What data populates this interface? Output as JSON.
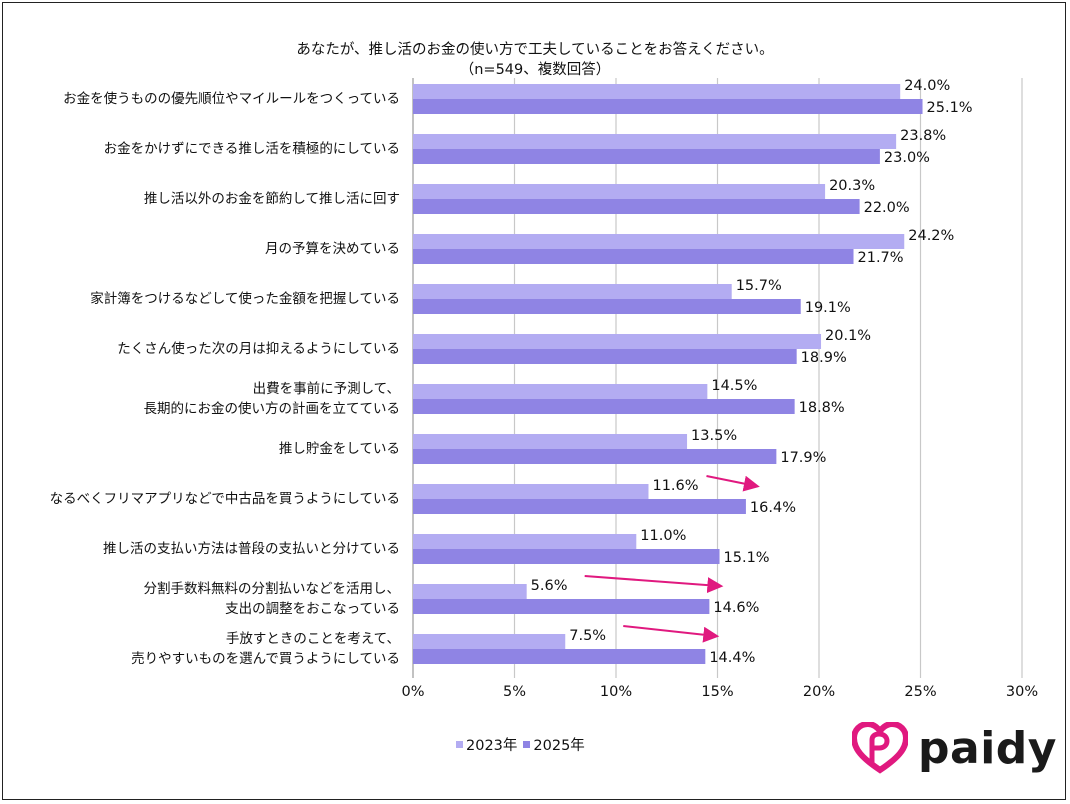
{
  "chart_data": {
    "type": "bar",
    "orientation": "horizontal",
    "title": "あなたが、推し活のお金の使い方で工夫していることをお答えください。",
    "subtitle": "（n=549、複数回答）",
    "categories": [
      [
        "お金を使うものの優先順位やマイルールをつくっている"
      ],
      [
        "お金をかけずにできる推し活を積極的にしている"
      ],
      [
        "推し活以外のお金を節約して推し活に回す"
      ],
      [
        "月の予算を決めている"
      ],
      [
        "家計簿をつけるなどして使った金額を把握している"
      ],
      [
        "たくさん使った次の月は抑えるようにしている"
      ],
      [
        "出費を事前に予測して、",
        "長期的にお金の使い方の計画を立てている"
      ],
      [
        "推し貯金をしている"
      ],
      [
        "なるべくフリマアプリなどで中古品を買うようにしている"
      ],
      [
        "推し活の支払い方法は普段の支払いと分けている"
      ],
      [
        "分割手数料無料の分割払いなどを活用し、",
        "支出の調整をおこなっている"
      ],
      [
        "手放すときのことを考えて、",
        "売りやすいものを選んで買うようにしている"
      ]
    ],
    "series": [
      {
        "name": "2023年",
        "color": "#b3acf2",
        "values": [
          24.0,
          23.8,
          20.3,
          24.2,
          15.7,
          20.1,
          14.5,
          13.5,
          11.6,
          11.0,
          5.6,
          7.5
        ]
      },
      {
        "name": "2025年",
        "color": "#8f84e4",
        "values": [
          25.1,
          23.0,
          22.0,
          21.7,
          19.1,
          18.9,
          18.8,
          17.9,
          16.4,
          15.1,
          14.6,
          14.4
        ]
      }
    ],
    "data_labels": [
      [
        "24.0%",
        "23.8%",
        "20.3%",
        "24.2%",
        "15.7%",
        "20.1%",
        "14.5%",
        "13.5%",
        "11.6%",
        "11.0%",
        "5.6%",
        "7.5%"
      ],
      [
        "25.1%",
        "23.0%",
        "22.0%",
        "21.7%",
        "19.1%",
        "18.9%",
        "18.8%",
        "17.9%",
        "16.4%",
        "15.1%",
        "14.6%",
        "14.4%"
      ]
    ],
    "xlim": [
      0,
      30
    ],
    "xticks": [
      "0%",
      "5%",
      "10%",
      "15%",
      "20%",
      "25%",
      "30%"
    ],
    "grid": "vertical",
    "legend": "bottom",
    "highlight_arrows": {
      "color": "#e0197f",
      "category_indices": [
        8,
        10,
        11
      ]
    }
  },
  "logo": {
    "text": "paidy",
    "color": "#e0197f"
  }
}
